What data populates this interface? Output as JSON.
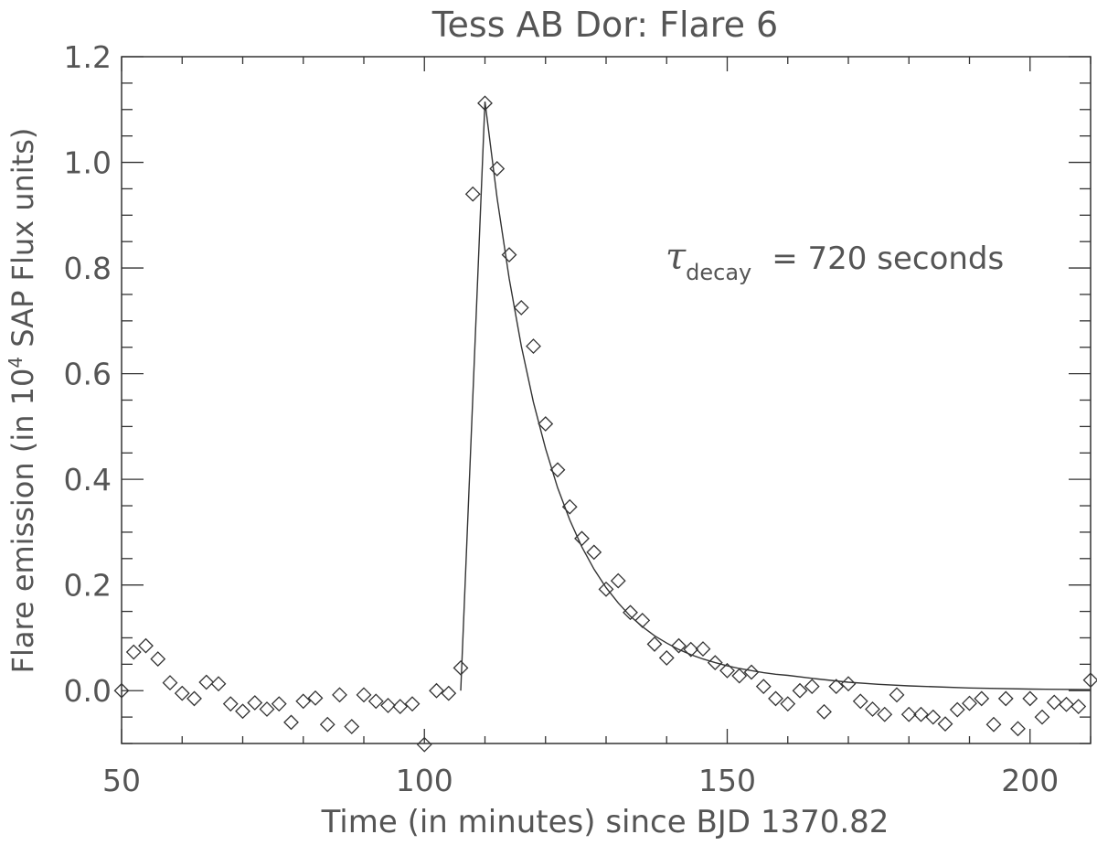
{
  "chart_data": {
    "type": "scatter",
    "title": "Tess AB Dor: Flare 6",
    "xlabel": "Time (in minutes) since BJD 1370.82",
    "ylabel_pre": "Flare emission (in 10",
    "ylabel_sup": "4",
    "ylabel_post": " SAP Flux units)",
    "xlim": [
      50,
      210
    ],
    "ylim": [
      -0.1,
      1.2
    ],
    "x_ticks": [
      50,
      100,
      150,
      200
    ],
    "x_tick_labels": [
      "50",
      "100",
      "150",
      "200"
    ],
    "y_ticks": [
      0.0,
      0.2,
      0.4,
      0.6,
      0.8,
      1.0,
      1.2
    ],
    "y_tick_labels": [
      "0.0",
      "0.2",
      "0.4",
      "0.6",
      "0.8",
      "1.0",
      "1.2"
    ],
    "x_minor_step": 10,
    "y_minor_step": 0.05,
    "grid": false,
    "annotation": {
      "symbol": "τ",
      "subscript": "decay",
      "text": "=  720   seconds"
    },
    "series": [
      {
        "marker": "diamond",
        "x": [
          50,
          52,
          54,
          56,
          58,
          60,
          62,
          64,
          66,
          68,
          70,
          72,
          74,
          76,
          78,
          80,
          82,
          84,
          86,
          88,
          90,
          92,
          94,
          96,
          98,
          100,
          102,
          104,
          106,
          108,
          110,
          112,
          114,
          116,
          118,
          120,
          122,
          124,
          126,
          128,
          130,
          132,
          134,
          136,
          138,
          140,
          142,
          144,
          146,
          148,
          150,
          152,
          154,
          156,
          158,
          160,
          162,
          164,
          166,
          168,
          170,
          172,
          174,
          176,
          178,
          180,
          182,
          184,
          186,
          188,
          190,
          192,
          194,
          196,
          198,
          200,
          202,
          204,
          206,
          208,
          210
        ],
        "y": [
          0.0,
          0.073,
          0.085,
          0.06,
          0.015,
          -0.005,
          -0.015,
          0.016,
          0.013,
          -0.025,
          -0.039,
          -0.023,
          -0.035,
          -0.025,
          -0.06,
          -0.02,
          -0.014,
          -0.064,
          -0.008,
          -0.068,
          -0.008,
          -0.02,
          -0.028,
          -0.03,
          -0.025,
          -0.102,
          0.0,
          -0.005,
          0.043,
          0.94,
          1.112,
          0.988,
          0.825,
          0.725,
          0.652,
          0.505,
          0.418,
          0.348,
          0.288,
          0.262,
          0.192,
          0.208,
          0.148,
          0.133,
          0.088,
          0.062,
          0.085,
          0.078,
          0.079,
          0.053,
          0.038,
          0.028,
          0.035,
          0.008,
          -0.015,
          -0.025,
          0.0,
          0.008,
          -0.04,
          0.008,
          0.013,
          -0.02,
          -0.035,
          -0.045,
          -0.008,
          -0.045,
          -0.045,
          -0.05,
          -0.063,
          -0.036,
          -0.024,
          -0.015,
          -0.064,
          -0.015,
          -0.072,
          -0.015,
          -0.05,
          -0.022,
          -0.026,
          -0.03,
          0.02
        ]
      },
      {
        "style": "line",
        "x": [
          106,
          110,
          112,
          114,
          116,
          118,
          120,
          122,
          124,
          126,
          128,
          130,
          132,
          134,
          136,
          138,
          140,
          142,
          144,
          146,
          148,
          150,
          152,
          154,
          156,
          158,
          160,
          165,
          170,
          175,
          180,
          190,
          200,
          210
        ],
        "y": [
          0.0,
          1.115,
          0.932,
          0.78,
          0.652,
          0.546,
          0.458,
          0.384,
          0.323,
          0.272,
          0.23,
          0.195,
          0.166,
          0.141,
          0.121,
          0.104,
          0.09,
          0.078,
          0.068,
          0.06,
          0.053,
          0.047,
          0.042,
          0.038,
          0.034,
          0.031,
          0.029,
          0.022,
          0.016,
          0.012,
          0.009,
          0.005,
          0.003,
          0.002
        ]
      }
    ]
  }
}
